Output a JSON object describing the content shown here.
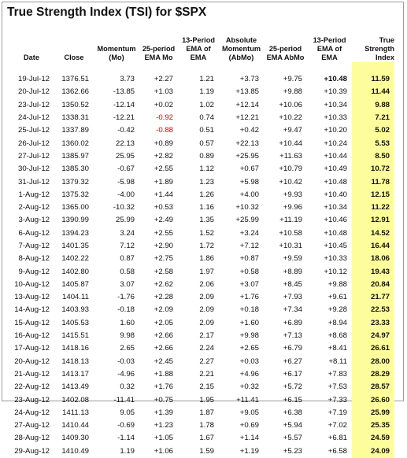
{
  "title": "True Strength Index (TSI) for $SPX",
  "columns": [
    "Date",
    "Close",
    "Momentum (Mo)",
    "25-period EMA Mo",
    "13-Period EMA of EMA",
    "Absolute Momentum (AbMo)",
    "25-period EMA AbMo",
    "13-Period EMA of EMA",
    "True Strength Index"
  ],
  "column_lines": [
    [
      "Date"
    ],
    [
      "Close"
    ],
    [
      "Momentum",
      "(Mo)"
    ],
    [
      "25-period",
      "EMA Mo"
    ],
    [
      "13-Period",
      "EMA of",
      "EMA"
    ],
    [
      "Absolute",
      "Momentum",
      "(AbMo)"
    ],
    [
      "25-period",
      "EMA AbMo"
    ],
    [
      "13-Period",
      "EMA of",
      "EMA"
    ],
    [
      "True",
      "Strength",
      "Index"
    ]
  ],
  "rows": [
    [
      "19-Jul-12",
      "1376.51",
      "3.73",
      "+2.27",
      "1.21",
      "+3.73",
      "+9.75",
      "+10.48",
      "11.59"
    ],
    [
      "20-Jul-12",
      "1362.66",
      "-13.85",
      "+1.03",
      "1.19",
      "+13.85",
      "+9.88",
      "+10.39",
      "11.44"
    ],
    [
      "23-Jul-12",
      "1350.52",
      "-12.14",
      "+0.02",
      "1.02",
      "+12.14",
      "+10.06",
      "+10.34",
      "9.88"
    ],
    [
      "24-Jul-12",
      "1338.31",
      "-12.21",
      "-0.92",
      "0.74",
      "+12.21",
      "+10.22",
      "+10.33",
      "7.21"
    ],
    [
      "25-Jul-12",
      "1337.89",
      "-0.42",
      "-0.88",
      "0.51",
      "+0.42",
      "+9.47",
      "+10.20",
      "5.02"
    ],
    [
      "26-Jul-12",
      "1360.02",
      "22.13",
      "+0.89",
      "0.57",
      "+22.13",
      "+10.44",
      "+10.24",
      "5.53"
    ],
    [
      "27-Jul-12",
      "1385.97",
      "25.95",
      "+2.82",
      "0.89",
      "+25.95",
      "+11.63",
      "+10.44",
      "8.50"
    ],
    [
      "30-Jul-12",
      "1385.30",
      "-0.67",
      "+2.55",
      "1.12",
      "+0.67",
      "+10.79",
      "+10.49",
      "10.72"
    ],
    [
      "31-Jul-12",
      "1379.32",
      "-5.98",
      "+1.89",
      "1.23",
      "+5.98",
      "+10.42",
      "+10.48",
      "11.78"
    ],
    [
      "1-Aug-12",
      "1375.32",
      "-4.00",
      "+1.44",
      "1.26",
      "+4.00",
      "+9.93",
      "+10.40",
      "12.15"
    ],
    [
      "2-Aug-12",
      "1365.00",
      "-10.32",
      "+0.53",
      "1.16",
      "+10.32",
      "+9.96",
      "+10.34",
      "11.22"
    ],
    [
      "3-Aug-12",
      "1390.99",
      "25.99",
      "+2.49",
      "1.35",
      "+25.99",
      "+11.19",
      "+10.46",
      "12.91"
    ],
    [
      "6-Aug-12",
      "1394.23",
      "3.24",
      "+2.55",
      "1.52",
      "+3.24",
      "+10.58",
      "+10.48",
      "14.52"
    ],
    [
      "7-Aug-12",
      "1401.35",
      "7.12",
      "+2.90",
      "1.72",
      "+7.12",
      "+10.31",
      "+10.45",
      "16.44"
    ],
    [
      "8-Aug-12",
      "1402.22",
      "0.87",
      "+2.75",
      "1.86",
      "+0.87",
      "+9.59",
      "+10.33",
      "18.06"
    ],
    [
      "9-Aug-12",
      "1402.80",
      "0.58",
      "+2.58",
      "1.97",
      "+0.58",
      "+8.89",
      "+10.12",
      "19.43"
    ],
    [
      "10-Aug-12",
      "1405.87",
      "3.07",
      "+2.62",
      "2.06",
      "+3.07",
      "+8.45",
      "+9.88",
      "20.84"
    ],
    [
      "13-Aug-12",
      "1404.11",
      "-1.76",
      "+2.28",
      "2.09",
      "+1.76",
      "+7.93",
      "+9.61",
      "21.77"
    ],
    [
      "14-Aug-12",
      "1403.93",
      "-0.18",
      "+2.09",
      "2.09",
      "+0.18",
      "+7.34",
      "+9.28",
      "22.53"
    ],
    [
      "15-Aug-12",
      "1405.53",
      "1.60",
      "+2.05",
      "2.09",
      "+1.60",
      "+6.89",
      "+8.94",
      "23.33"
    ],
    [
      "16-Aug-12",
      "1415.51",
      "9.98",
      "+2.66",
      "2.17",
      "+9.98",
      "+7.13",
      "+8.68",
      "24.97"
    ],
    [
      "17-Aug-12",
      "1418.16",
      "2.65",
      "+2.66",
      "2.24",
      "+2.65",
      "+6.79",
      "+8.41",
      "26.61"
    ],
    [
      "20-Aug-12",
      "1418.13",
      "-0.03",
      "+2.45",
      "2.27",
      "+0.03",
      "+6.27",
      "+8.11",
      "28.00"
    ],
    [
      "21-Aug-12",
      "1413.17",
      "-4.96",
      "+1.88",
      "2.21",
      "+4.96",
      "+6.17",
      "+7.83",
      "28.29"
    ],
    [
      "22-Aug-12",
      "1413.49",
      "0.32",
      "+1.76",
      "2.15",
      "+0.32",
      "+5.72",
      "+7.53",
      "28.57"
    ],
    [
      "23-Aug-12",
      "1402.08",
      "-11.41",
      "+0.75",
      "1.95",
      "+11.41",
      "+6.15",
      "+7.33",
      "26.60"
    ],
    [
      "24-Aug-12",
      "1411.13",
      "9.05",
      "+1.39",
      "1.87",
      "+9.05",
      "+6.38",
      "+7.19",
      "25.99"
    ],
    [
      "27-Aug-12",
      "1410.44",
      "-0.69",
      "+1.23",
      "1.78",
      "+0.69",
      "+5.94",
      "+7.02",
      "25.35"
    ],
    [
      "28-Aug-12",
      "1409.30",
      "-1.14",
      "+1.05",
      "1.67",
      "+1.14",
      "+5.57",
      "+6.81",
      "24.59"
    ],
    [
      "29-Aug-12",
      "1410.49",
      "1.19",
      "+1.06",
      "1.59",
      "+1.19",
      "+5.23",
      "+6.58",
      "24.09"
    ]
  ],
  "highlight_color": "#fefd9b",
  "negative_color": "#e00000"
}
